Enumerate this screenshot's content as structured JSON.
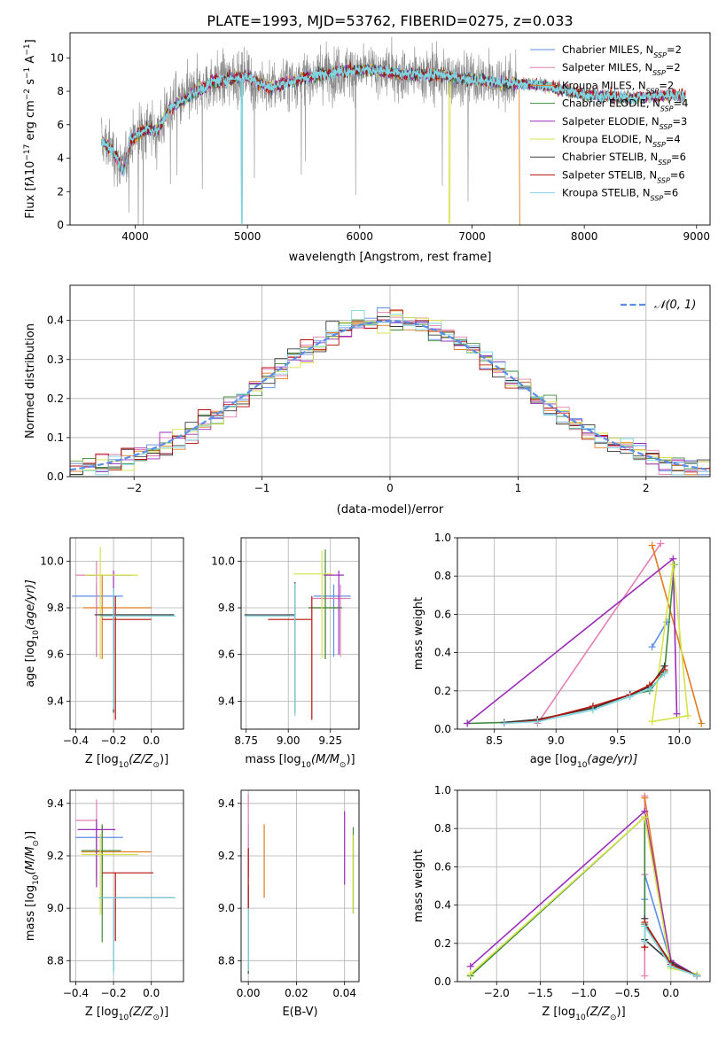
{
  "title": "PLATE=1993, MJD=53762, FIBERID=0275, z=0.033",
  "colors": {
    "s0": "#5b8ee6",
    "s1": "#e47fb4",
    "s2": "#e07b20",
    "s3": "#3e8a3e",
    "s4": "#9b2eb8",
    "s5": "#d6e34a",
    "s6": "#3a3a3a",
    "s7": "#b5120c",
    "s8": "#7fd6e0",
    "gray": "#8a8a8a",
    "gauss": "#5b8ee6",
    "wc_age": "#5b8ee6",
    "wc_z": "#5b8ee6"
  },
  "chart_data": [
    {
      "id": "spectrum",
      "type": "line",
      "xlabel": "wavelength [Angstrom, rest frame]",
      "ylabel_parts": [
        "Flux [f",
        "λ",
        "10",
        "−17",
        " erg cm",
        "−2",
        " s",
        "−1",
        " A",
        "−1",
        "]"
      ],
      "xlim": [
        3420,
        9120
      ],
      "ylim": [
        0,
        11.5
      ],
      "xticks": [
        4000,
        5000,
        6000,
        7000,
        8000,
        9000
      ],
      "yticks": [
        0,
        2,
        4,
        6,
        8,
        10
      ],
      "legend": [
        {
          "text": "Chabrier MILES, N",
          "sub": "SSP",
          "tail": "=2"
        },
        {
          "text": "Salpeter MILES, N",
          "sub": "SSP",
          "tail": "=2"
        },
        {
          "text": "Kroupa MILES, N",
          "sub": "SSP",
          "tail": "=2"
        },
        {
          "text": "Chabrier ELODIE, N",
          "sub": "SSP",
          "tail": "=4"
        },
        {
          "text": "Salpeter ELODIE, N",
          "sub": "SSP",
          "tail": "=3"
        },
        {
          "text": "Kroupa ELODIE, N",
          "sub": "SSP",
          "tail": "=4"
        },
        {
          "text": "Chabrier STELIB, N",
          "sub": "SSP",
          "tail": "=6"
        },
        {
          "text": "Salpeter STELIB, N",
          "sub": "SSP",
          "tail": "=6"
        },
        {
          "text": "Kroupa STELIB, N",
          "sub": "SSP",
          "tail": "=6"
        }
      ],
      "continuum": [
        [
          3700,
          5.0
        ],
        [
          3800,
          4.5
        ],
        [
          3900,
          3.2
        ],
        [
          3950,
          5.0
        ],
        [
          4000,
          5.3
        ],
        [
          4100,
          5.8
        ],
        [
          4200,
          5.6
        ],
        [
          4300,
          6.9
        ],
        [
          4500,
          7.8
        ],
        [
          4700,
          8.6
        ],
        [
          5000,
          8.9
        ],
        [
          5200,
          8.2
        ],
        [
          5500,
          8.8
        ],
        [
          5800,
          9.2
        ],
        [
          6100,
          9.3
        ],
        [
          6400,
          9.0
        ],
        [
          6700,
          9.0
        ],
        [
          7000,
          8.7
        ],
        [
          7300,
          8.5
        ],
        [
          7600,
          8.4
        ],
        [
          8000,
          7.8
        ],
        [
          8400,
          7.6
        ],
        [
          8800,
          7.8
        ],
        [
          8900,
          7.7
        ]
      ],
      "cutoffs": {
        "kroupa_miles_end": 7420,
        "kroupa_elodie_dip": 6800,
        "stelib_dip": 4950
      }
    },
    {
      "id": "residuals",
      "type": "histogram",
      "xlabel": "(data-model)/error",
      "ylabel": "Normed distribution",
      "xlim": [
        -2.5,
        2.5
      ],
      "ylim": [
        0,
        0.49
      ],
      "xticks": [
        -2,
        -1,
        0,
        1,
        2
      ],
      "yticks": [
        0,
        0.1,
        0.2,
        0.3,
        0.4
      ],
      "legend_label": "𝒩(0, 1)",
      "bin_width": 0.1
    },
    {
      "id": "age_vs_z",
      "type": "scatter",
      "xlabel_parts": [
        "Z [log",
        "10",
        "(Z/Z",
        "⊙",
        ")]"
      ],
      "ylabel_parts": [
        "age  [log",
        "10",
        "(age/yr)]"
      ],
      "xlim": [
        -0.43,
        0.17
      ],
      "ylim": [
        9.28,
        10.1
      ],
      "xticks": [
        -0.4,
        -0.2,
        0.0
      ],
      "yticks": [
        9.4,
        9.6,
        9.8,
        10.0
      ],
      "points": [
        {
          "x": -0.29,
          "y": 9.85,
          "xerr": [
            0.13,
            0.14
          ],
          "yerr": [
            0.26,
            0.05
          ]
        },
        {
          "x": -0.29,
          "y": 9.94,
          "xerr": [
            0.11,
            0.0
          ],
          "yerr": [
            0.35,
            0.06
          ]
        },
        {
          "x": -0.26,
          "y": 9.8,
          "xerr": [
            0.1,
            0.26
          ],
          "yerr": [
            0.22,
            0.14
          ]
        },
        {
          "x": -0.2,
          "y": 9.77,
          "xerr": [
            0.08,
            0.32
          ],
          "yerr": [
            0.41,
            0.12
          ]
        },
        {
          "x": -0.2,
          "y": 9.94,
          "xerr": [
            0.14,
            0.1
          ],
          "yerr": [
            0.34,
            0.02
          ]
        },
        {
          "x": -0.27,
          "y": 9.94,
          "xerr": [
            0.08,
            0.2
          ],
          "yerr": [
            0.36,
            0.12
          ]
        },
        {
          "x": -0.2,
          "y": 9.77,
          "xerr": [
            0.1,
            0.32
          ],
          "yerr": [
            0.42,
            0.08
          ]
        },
        {
          "x": -0.19,
          "y": 9.75,
          "xerr": [
            0.07,
            0.19
          ],
          "yerr": [
            0.43,
            0.1
          ]
        },
        {
          "x": -0.2,
          "y": 9.765,
          "xerr": [
            0.07,
            0.33
          ],
          "yerr": [
            0.4,
            0.12
          ]
        }
      ]
    },
    {
      "id": "age_vs_mass",
      "type": "scatter",
      "xlabel_parts": [
        "mass [log",
        "10",
        "(M/M",
        "⊙",
        ")]"
      ],
      "xlim": [
        8.72,
        9.42
      ],
      "ylim": [
        9.28,
        10.1
      ],
      "xticks": [
        8.75,
        9.0,
        9.25
      ],
      "yticks": [
        9.4,
        9.6,
        9.8,
        10.0
      ],
      "points": [
        {
          "x": 9.27,
          "y": 9.85,
          "xerr": [
            0.12,
            0.1
          ],
          "yerr": [
            0.26,
            0.05
          ]
        },
        {
          "x": 9.31,
          "y": 9.84,
          "xerr": [
            0.17,
            0.06
          ],
          "yerr": [
            0.25,
            0.06
          ]
        },
        {
          "x": 9.22,
          "y": 9.8,
          "xerr": [
            0.1,
            0.08
          ],
          "yerr": [
            0.22,
            0.14
          ]
        },
        {
          "x": 9.22,
          "y": 9.8,
          "xerr": [
            0.1,
            0.1
          ],
          "yerr": [
            0.22,
            0.25
          ]
        },
        {
          "x": 9.3,
          "y": 9.94,
          "xerr": [
            0.09,
            0.03
          ],
          "yerr": [
            0.34,
            0.02
          ]
        },
        {
          "x": 9.2,
          "y": 9.945,
          "xerr": [
            0.17,
            0.06
          ],
          "yerr": [
            0.36,
            0.1
          ]
        },
        {
          "x": 9.04,
          "y": 9.77,
          "xerr": [
            0.3,
            0.0
          ],
          "yerr": [
            0.42,
            0.14
          ]
        },
        {
          "x": 9.14,
          "y": 9.75,
          "xerr": [
            0.26,
            0.0
          ],
          "yerr": [
            0.43,
            0.1
          ]
        },
        {
          "x": 9.04,
          "y": 9.765,
          "xerr": [
            0.3,
            0.0
          ],
          "yerr": [
            0.43,
            0.14
          ]
        }
      ]
    },
    {
      "id": "weight_vs_age",
      "type": "line",
      "xlabel_parts": [
        "age  [log",
        "10",
        "(age/yr)]"
      ],
      "ylabel": "mass weight",
      "xlim": [
        8.2,
        10.25
      ],
      "ylim": [
        0,
        1.0
      ],
      "xticks": [
        8.5,
        9.0,
        9.5,
        10.0
      ],
      "yticks": [
        0.0,
        0.2,
        0.4,
        0.6,
        0.8,
        1.0
      ],
      "series": [
        {
          "x": [
            9.78,
            9.9
          ],
          "y": [
            0.43,
            0.56
          ]
        },
        {
          "x": [
            8.85,
            9.85
          ],
          "y": [
            0.03,
            0.97
          ]
        },
        {
          "x": [
            9.78,
            10.18
          ],
          "y": [
            0.96,
            0.03
          ]
        },
        {
          "x": [
            8.28,
            8.58,
            8.85,
            9.3,
            9.6,
            9.76,
            9.88,
            9.96
          ],
          "y": [
            0.03,
            0.035,
            0.05,
            0.11,
            0.18,
            0.2,
            0.3,
            0.86
          ]
        },
        {
          "x": [
            8.28,
            9.95,
            9.98
          ],
          "y": [
            0.03,
            0.89,
            0.08
          ]
        },
        {
          "x": [
            9.78,
            9.95,
            10.07,
            9.78
          ],
          "y": [
            0.04,
            0.86,
            0.07,
            0.04
          ]
        },
        {
          "x": [
            8.58,
            8.85,
            9.3,
            9.6,
            9.76,
            9.88
          ],
          "y": [
            0.035,
            0.05,
            0.11,
            0.18,
            0.22,
            0.33
          ]
        },
        {
          "x": [
            8.58,
            8.85,
            9.3,
            9.6,
            9.76,
            9.88
          ],
          "y": [
            0.03,
            0.045,
            0.12,
            0.18,
            0.23,
            0.31
          ]
        },
        {
          "x": [
            8.58,
            8.85,
            9.3,
            9.6,
            9.76,
            9.88
          ],
          "y": [
            0.03,
            0.04,
            0.1,
            0.17,
            0.21,
            0.29
          ]
        }
      ]
    },
    {
      "id": "mass_vs_z",
      "type": "scatter",
      "xlabel_parts": [
        "Z [log",
        "10",
        "(Z/Z",
        "⊙",
        ")]"
      ],
      "ylabel_parts": [
        "mass [log",
        "10",
        "(M/M",
        "⊙",
        ")]"
      ],
      "xlim": [
        -0.43,
        0.17
      ],
      "ylim": [
        8.72,
        9.45
      ],
      "xticks": [
        -0.4,
        -0.2,
        0.0
      ],
      "yticks": [
        8.8,
        9.0,
        9.2,
        9.4
      ],
      "points": [
        {
          "x": -0.29,
          "y": 9.27,
          "xerr": [
            0.11,
            0.14
          ],
          "yerr": [
            0.15,
            0.05
          ]
        },
        {
          "x": -0.29,
          "y": 9.335,
          "xerr": [
            0.11,
            0.0
          ],
          "yerr": [
            0.22,
            0.08
          ]
        },
        {
          "x": -0.26,
          "y": 9.215,
          "xerr": [
            0.11,
            0.26
          ],
          "yerr": [
            0.24,
            0.1
          ]
        },
        {
          "x": -0.26,
          "y": 9.22,
          "xerr": [
            0.11,
            0.1
          ],
          "yerr": [
            0.35,
            0.1
          ]
        },
        {
          "x": -0.29,
          "y": 9.3,
          "xerr": [
            0.1,
            0.1
          ],
          "yerr": [
            0.22,
            0.04
          ]
        },
        {
          "x": -0.27,
          "y": 9.205,
          "xerr": [
            0.1,
            0.2
          ],
          "yerr": [
            0.23,
            0.08
          ]
        },
        {
          "x": -0.2,
          "y": 9.04,
          "xerr": [
            0.07,
            0.32
          ],
          "yerr": [
            0.28,
            0.0
          ]
        },
        {
          "x": -0.19,
          "y": 9.135,
          "xerr": [
            0.07,
            0.2
          ],
          "yerr": [
            0.26,
            0.0
          ]
        },
        {
          "x": -0.2,
          "y": 9.04,
          "xerr": [
            0.08,
            0.33
          ],
          "yerr": [
            0.29,
            0.0
          ]
        }
      ]
    },
    {
      "id": "mass_vs_ebv",
      "type": "scatter",
      "xlabel": "E(B-V)",
      "xlim": [
        -0.003,
        0.046
      ],
      "ylim": [
        8.72,
        9.45
      ],
      "xticks": [
        0.0,
        0.02,
        0.04
      ],
      "yticks": [
        8.8,
        9.0,
        9.2,
        9.4
      ],
      "points": [
        {
          "x": 0.0,
          "y": 9.27,
          "yerr": [
            0.15,
            0.05
          ]
        },
        {
          "x": 0.0,
          "y": 9.335,
          "yerr": [
            0.22,
            0.1
          ]
        },
        {
          "x": 0.0066,
          "y": 9.18,
          "yerr": [
            0.14,
            0.14
          ]
        },
        {
          "x": 0.0436,
          "y": 9.2,
          "yerr": [
            0.22,
            0.11
          ]
        },
        {
          "x": 0.04,
          "y": 9.24,
          "yerr": [
            0.15,
            0.13
          ]
        },
        {
          "x": 0.0435,
          "y": 9.14,
          "yerr": [
            0.16,
            0.14
          ]
        },
        {
          "x": 0.0,
          "y": 9.0,
          "yerr": [
            0.25,
            0.09
          ]
        },
        {
          "x": 0.0,
          "y": 9.1,
          "yerr": [
            0.1,
            0.13
          ]
        },
        {
          "x": 0.0,
          "y": 9.0,
          "yerr": [
            0.24,
            0.0
          ]
        }
      ]
    },
    {
      "id": "weight_vs_z",
      "type": "line",
      "xlabel_parts": [
        "Z [log",
        "10",
        "(Z/Z",
        "⊙",
        ")]"
      ],
      "ylabel": "mass weight",
      "xlim": [
        -2.45,
        0.45
      ],
      "ylim": [
        0,
        1.0
      ],
      "xticks": [
        -2.0,
        -1.5,
        -1.0,
        -0.5,
        0.0
      ],
      "yticks": [
        0.0,
        0.2,
        0.4,
        0.6,
        0.8,
        1.0
      ],
      "series": [
        {
          "x": [
            -0.3,
            -0.3,
            0.0,
            0.3
          ],
          "y": [
            0.43,
            0.56,
            0.1,
            0.03
          ]
        },
        {
          "x": [
            -0.3,
            -0.3,
            -0.3
          ],
          "y": [
            0.03,
            0.97,
            0.56
          ]
        },
        {
          "x": [
            -0.3,
            0.0,
            0.3
          ],
          "y": [
            0.96,
            0.08,
            0.03
          ]
        },
        {
          "x": [
            -2.3,
            -0.3,
            -0.3,
            0.0,
            0.3
          ],
          "y": [
            0.03,
            0.86,
            0.3,
            0.1,
            0.03
          ]
        },
        {
          "x": [
            -2.3,
            -0.3,
            0.0,
            0.3
          ],
          "y": [
            0.08,
            0.89,
            0.11,
            0.03
          ]
        },
        {
          "x": [
            -2.3,
            -0.3,
            0.0,
            0.3
          ],
          "y": [
            0.04,
            0.86,
            0.07,
            0.04
          ]
        },
        {
          "x": [
            -0.3,
            -0.3,
            0.0,
            0.3
          ],
          "y": [
            0.33,
            0.22,
            0.1,
            0.03
          ]
        },
        {
          "x": [
            -0.3,
            -0.3,
            0.0,
            0.3
          ],
          "y": [
            0.18,
            0.31,
            0.09,
            0.03
          ]
        },
        {
          "x": [
            -0.3,
            -0.3,
            0.0,
            0.3
          ],
          "y": [
            0.21,
            0.29,
            0.08,
            0.03
          ]
        }
      ]
    }
  ]
}
